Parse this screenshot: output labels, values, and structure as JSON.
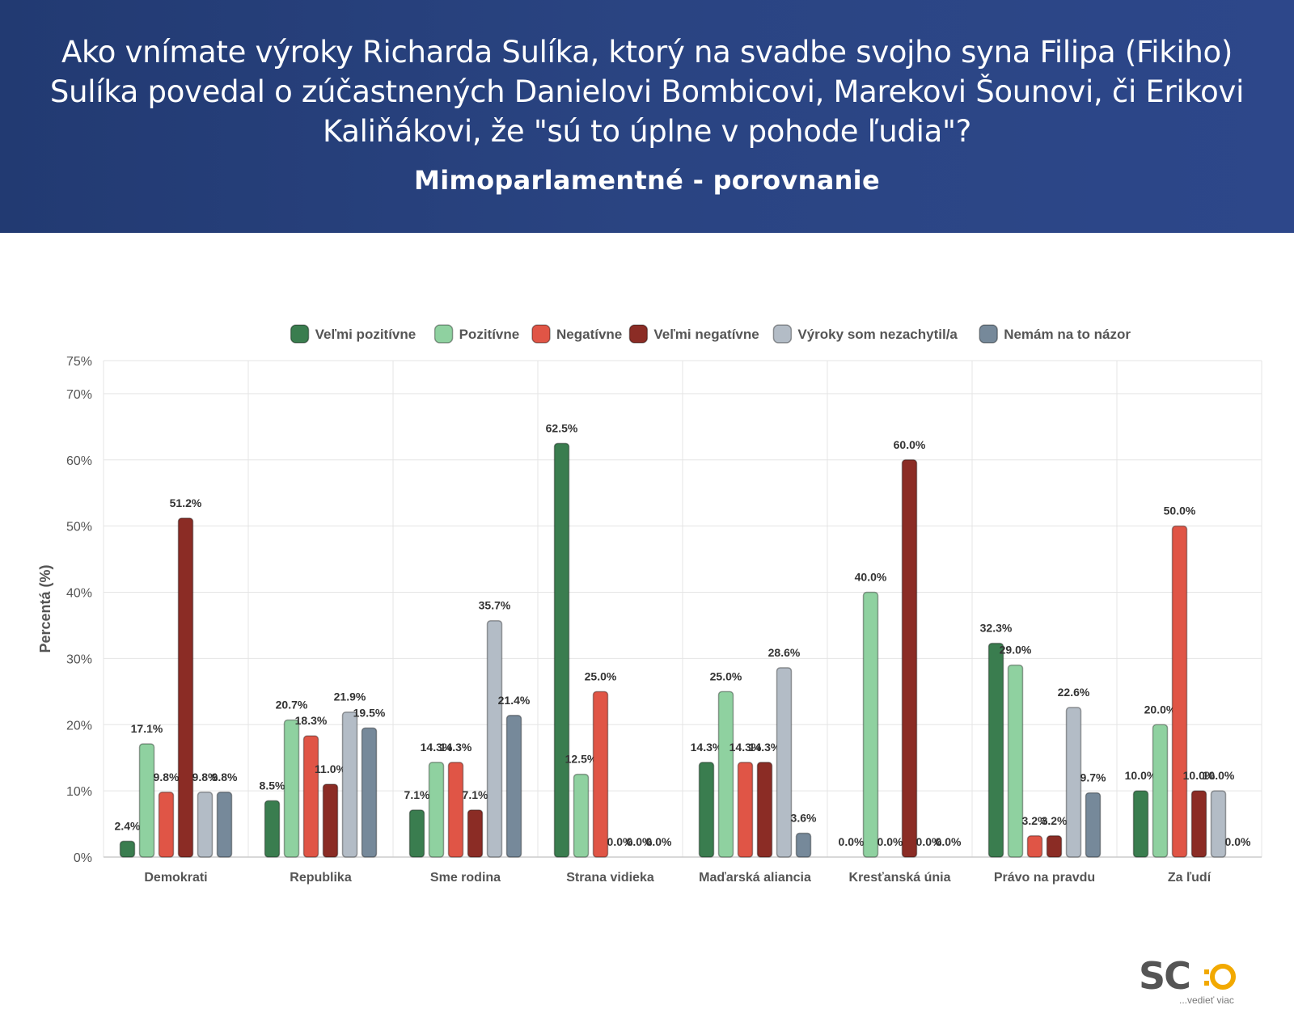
{
  "header": {
    "question": "Ako vnímate výroky Richarda Sulíka, ktorý na svadbe svojho syna Filipa (Fikiho) Sulíka povedal o zúčastnených Danielovi Bombicovi, Marekovi Šounovi, či Erikovi Kaliňákovi, že \"sú to úplne v pohode ľudia\"?",
    "subtitle": "Mimoparlamentné - porovnanie"
  },
  "logo": {
    "text": "SC",
    "tagline": "...vedieť viac"
  },
  "chart_data": {
    "type": "bar",
    "ylabel": "Percentá (%)",
    "xlabel": "",
    "ylim": [
      0,
      75
    ],
    "yticks": [
      0,
      10,
      20,
      30,
      40,
      50,
      60,
      70,
      75
    ],
    "ytick_labels": [
      "0%",
      "10%",
      "20%",
      "30%",
      "40%",
      "50%",
      "60%",
      "70%",
      "75%"
    ],
    "grid": true,
    "legend_position": "top-center",
    "categories": [
      "Demokrati",
      "Republika",
      "Sme rodina",
      "Strana vidieka",
      "Maďarská aliancia",
      "Kresťanská únia",
      "Právo na pravdu",
      "Za ľudí"
    ],
    "series": [
      {
        "name": "Veľmi pozitívne",
        "color": "#3a7d4f",
        "values": [
          2.4,
          8.5,
          7.1,
          62.5,
          14.3,
          0.0,
          32.3,
          10.0
        ]
      },
      {
        "name": "Pozitívne",
        "color": "#8fd1a0",
        "values": [
          17.1,
          20.7,
          14.3,
          12.5,
          25.0,
          40.0,
          29.0,
          20.0
        ]
      },
      {
        "name": "Negatívne",
        "color": "#e05546",
        "values": [
          9.8,
          18.3,
          14.3,
          25.0,
          14.3,
          0.0,
          3.2,
          50.0
        ]
      },
      {
        "name": "Veľmi negatívne",
        "color": "#8b2c25",
        "values": [
          51.2,
          11.0,
          7.1,
          0.0,
          14.3,
          60.0,
          3.2,
          10.0
        ]
      },
      {
        "name": "Výroky som nezachytil/a",
        "color": "#b3bcc6",
        "values": [
          9.8,
          21.9,
          35.7,
          0.0,
          28.6,
          0.0,
          22.6,
          10.0
        ]
      },
      {
        "name": "Nemám na to názor",
        "color": "#76899a",
        "values": [
          9.8,
          19.5,
          21.4,
          0.0,
          3.6,
          0.0,
          9.7,
          0.0
        ]
      }
    ]
  }
}
